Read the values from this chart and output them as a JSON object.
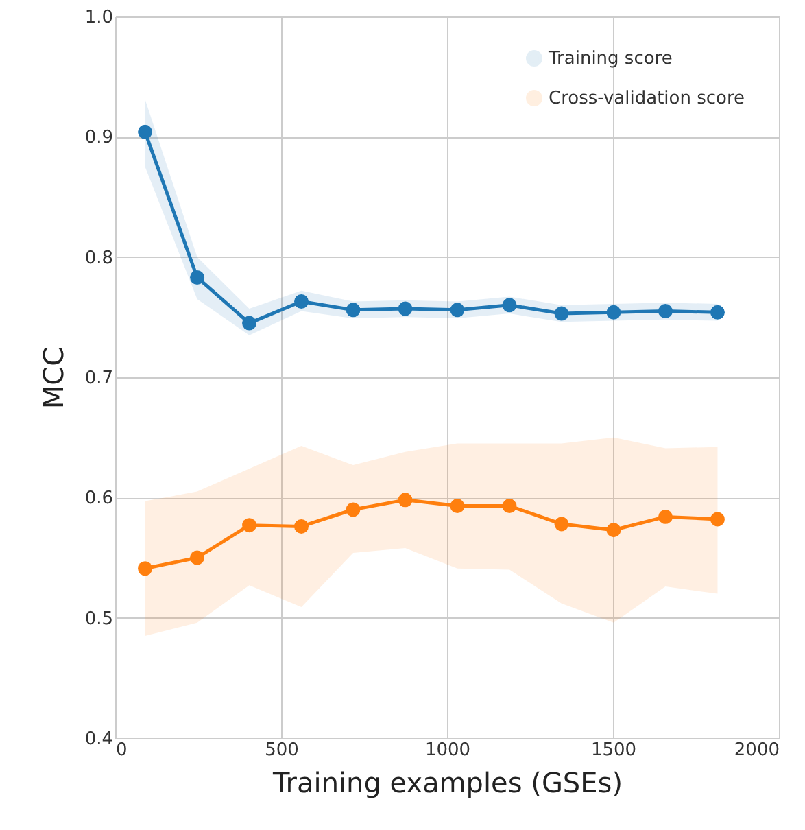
{
  "chart_data": {
    "type": "line",
    "xlabel": "Training examples (GSEs)",
    "ylabel": "MCC",
    "x": [
      90,
      247,
      404,
      561,
      717,
      874,
      1031,
      1188,
      1345,
      1502,
      1658,
      1815
    ],
    "series": [
      {
        "name": "Training score",
        "color": "#1f77b4",
        "values": [
          0.904,
          0.783,
          0.745,
          0.763,
          0.756,
          0.757,
          0.756,
          0.76,
          0.753,
          0.754,
          0.755,
          0.754
        ],
        "lower": [
          0.875,
          0.765,
          0.735,
          0.755,
          0.749,
          0.75,
          0.749,
          0.753,
          0.746,
          0.747,
          0.748,
          0.747
        ],
        "upper": [
          0.931,
          0.8,
          0.757,
          0.772,
          0.763,
          0.764,
          0.763,
          0.767,
          0.76,
          0.761,
          0.762,
          0.761
        ]
      },
      {
        "name": "Cross-validation score",
        "color": "#ff7f0e",
        "values": [
          0.541,
          0.55,
          0.577,
          0.576,
          0.59,
          0.598,
          0.593,
          0.593,
          0.578,
          0.573,
          0.584,
          0.582
        ],
        "lower": [
          0.485,
          0.496,
          0.527,
          0.509,
          0.554,
          0.558,
          0.541,
          0.54,
          0.512,
          0.496,
          0.526,
          0.52
        ],
        "upper": [
          0.597,
          0.605,
          0.624,
          0.643,
          0.627,
          0.638,
          0.645,
          0.645,
          0.645,
          0.65,
          0.641,
          0.642
        ]
      }
    ],
    "xlim": [
      0,
      2000
    ],
    "xticks": [
      0,
      500,
      1000,
      1500,
      2000
    ],
    "ylim": [
      0.4,
      1.0
    ],
    "yticks": [
      0.4,
      0.5,
      0.6,
      0.7,
      0.8,
      0.9,
      {
        "value": 1,
        "label": "1.0"
      }
    ],
    "grid": true,
    "legend": "top right",
    "marker": "circle",
    "line_style": "solid"
  }
}
